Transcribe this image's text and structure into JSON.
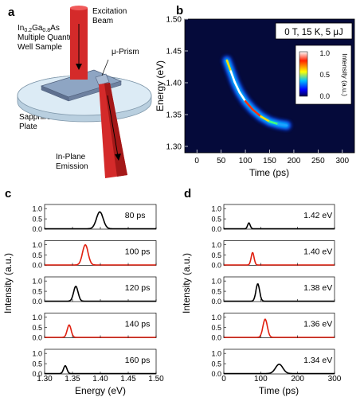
{
  "panels": {
    "a": {
      "letter": "a",
      "sample_line1": "In0.2Ga0.8As",
      "sample_line2": "Multiple Quantum",
      "sample_line3": "Well Sample",
      "excitation_line1": "Excitation",
      "excitation_line2": "Beam",
      "prism": "μ-Prism",
      "sapphire_line1": "Sapphire",
      "sapphire_line2": "Plate",
      "emission_line1": "In-Plane",
      "emission_line2": "Emission",
      "colors": {
        "beam": "#d42a2a",
        "plate": "#cfe1ee",
        "sample": "#7e94b4"
      }
    },
    "b": {
      "letter": "b",
      "annotation": "0 T, 15 K, 5 μJ",
      "colorbar_label": "Intensity (a.u.)",
      "colorbar_ticks": [
        "1.0",
        "0.5",
        "0.0"
      ],
      "colorbar_colors": [
        "#ffffff",
        "#ff2000",
        "#ffff00",
        "#00c0ff",
        "#0000ff",
        "#000050"
      ]
    },
    "c": {
      "letter": "c"
    },
    "d": {
      "letter": "d"
    }
  },
  "chart_data": [
    {
      "panel": "b",
      "type": "heatmap",
      "xlabel": "Time (ps)",
      "ylabel": "Energy (eV)",
      "xlim": [
        -25,
        325
      ],
      "ylim": [
        1.29,
        1.5
      ],
      "xticks": [
        0,
        50,
        100,
        150,
        200,
        250,
        300
      ],
      "yticks": [
        1.3,
        1.35,
        1.4,
        1.45,
        1.5
      ],
      "background": "#050a3a",
      "ridge": [
        {
          "x": 62,
          "y": 1.435,
          "i": 0.55
        },
        {
          "x": 70,
          "y": 1.418,
          "i": 0.85
        },
        {
          "x": 78,
          "y": 1.401,
          "i": 1.0
        },
        {
          "x": 88,
          "y": 1.385,
          "i": 1.0
        },
        {
          "x": 100,
          "y": 1.371,
          "i": 0.95
        },
        {
          "x": 115,
          "y": 1.358,
          "i": 0.85
        },
        {
          "x": 132,
          "y": 1.347,
          "i": 0.7
        },
        {
          "x": 150,
          "y": 1.339,
          "i": 0.55
        },
        {
          "x": 168,
          "y": 1.335,
          "i": 0.4
        },
        {
          "x": 185,
          "y": 1.333,
          "i": 0.25
        }
      ]
    },
    {
      "panel": "c",
      "type": "line",
      "xlabel": "Energy (eV)",
      "ylabel": "Intensity (a.u.)",
      "xlim": [
        1.3,
        1.5
      ],
      "ylim": [
        0,
        1.2
      ],
      "xticks": [
        "1.30",
        "1.35",
        "1.40",
        "1.45",
        "1.50"
      ],
      "xtick_values": [
        1.3,
        1.35,
        1.4,
        1.45,
        1.5
      ],
      "yticks": [
        "0.0",
        "0.5",
        "1.0"
      ],
      "series": [
        {
          "name": "80 ps",
          "color": "#000000",
          "center": 1.399,
          "width": 0.006,
          "amp": 0.82
        },
        {
          "name": "100 ps",
          "color": "#e02010",
          "center": 1.373,
          "width": 0.005,
          "amp": 0.98
        },
        {
          "name": "120 ps",
          "color": "#000000",
          "center": 1.356,
          "width": 0.004,
          "amp": 0.72
        },
        {
          "name": "140 ps",
          "color": "#e02010",
          "center": 1.344,
          "width": 0.0035,
          "amp": 0.6
        },
        {
          "name": "160 ps",
          "color": "#000000",
          "center": 1.337,
          "width": 0.003,
          "amp": 0.38
        }
      ]
    },
    {
      "panel": "d",
      "type": "line",
      "xlabel": "Time (ps)",
      "ylabel": "Intensity (a.u.)",
      "xlim": [
        0,
        300
      ],
      "ylim": [
        0,
        1.2
      ],
      "xticks": [
        "0",
        "100",
        "200",
        "300"
      ],
      "xtick_values": [
        0,
        100,
        200,
        300
      ],
      "yticks": [
        "0.0",
        "0.5",
        "1.0"
      ],
      "series": [
        {
          "name": "1.42 eV",
          "color": "#000000",
          "center": 68,
          "width": 3.5,
          "amp": 0.28
        },
        {
          "name": "1.40 eV",
          "color": "#e02010",
          "center": 78,
          "width": 4,
          "amp": 0.6
        },
        {
          "name": "1.38 eV",
          "color": "#000000",
          "center": 92,
          "width": 5,
          "amp": 0.84
        },
        {
          "name": "1.36 eV",
          "color": "#e02010",
          "center": 112,
          "width": 6,
          "amp": 0.88
        },
        {
          "name": "1.34 eV",
          "color": "#000000",
          "center": 150,
          "width": 10,
          "amp": 0.45
        }
      ]
    }
  ]
}
